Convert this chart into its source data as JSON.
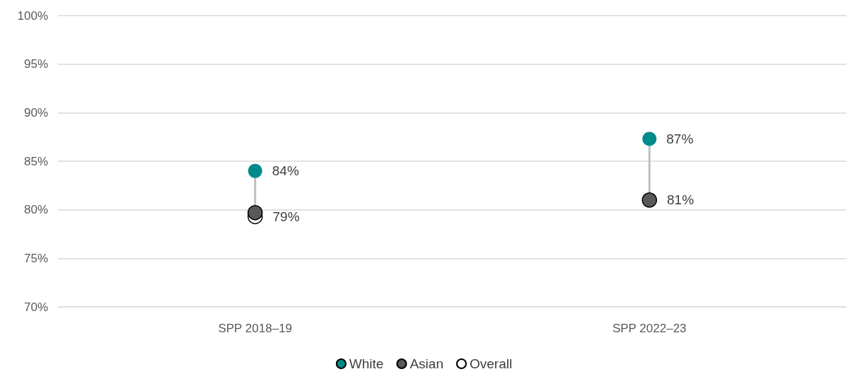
{
  "chart_data": {
    "type": "scatter",
    "categories": [
      "SPP 2018–19",
      "SPP 2022–23"
    ],
    "series": [
      {
        "name": "White",
        "color": "#008b8b",
        "values": [
          84.0,
          87.3
        ],
        "value_labels": [
          "84%",
          "87%"
        ]
      },
      {
        "name": "Asian",
        "color": "#595959",
        "values": [
          79.7,
          81.0
        ],
        "value_labels": [
          null,
          "81%"
        ]
      },
      {
        "name": "Overall",
        "color": "#ffffff",
        "values": [
          79.3,
          null
        ],
        "value_labels": [
          "79%",
          null
        ]
      }
    ],
    "ylim": [
      70,
      100
    ],
    "yticks": [
      {
        "value": 70,
        "label": "70%"
      },
      {
        "value": 75,
        "label": "75%"
      },
      {
        "value": 80,
        "label": "80%"
      },
      {
        "value": 85,
        "label": "85%"
      },
      {
        "value": 90,
        "label": "90%"
      },
      {
        "value": 95,
        "label": "95%"
      },
      {
        "value": 100,
        "label": "100%"
      }
    ],
    "grid": "y",
    "legend": "bottom",
    "marker": "circle"
  }
}
